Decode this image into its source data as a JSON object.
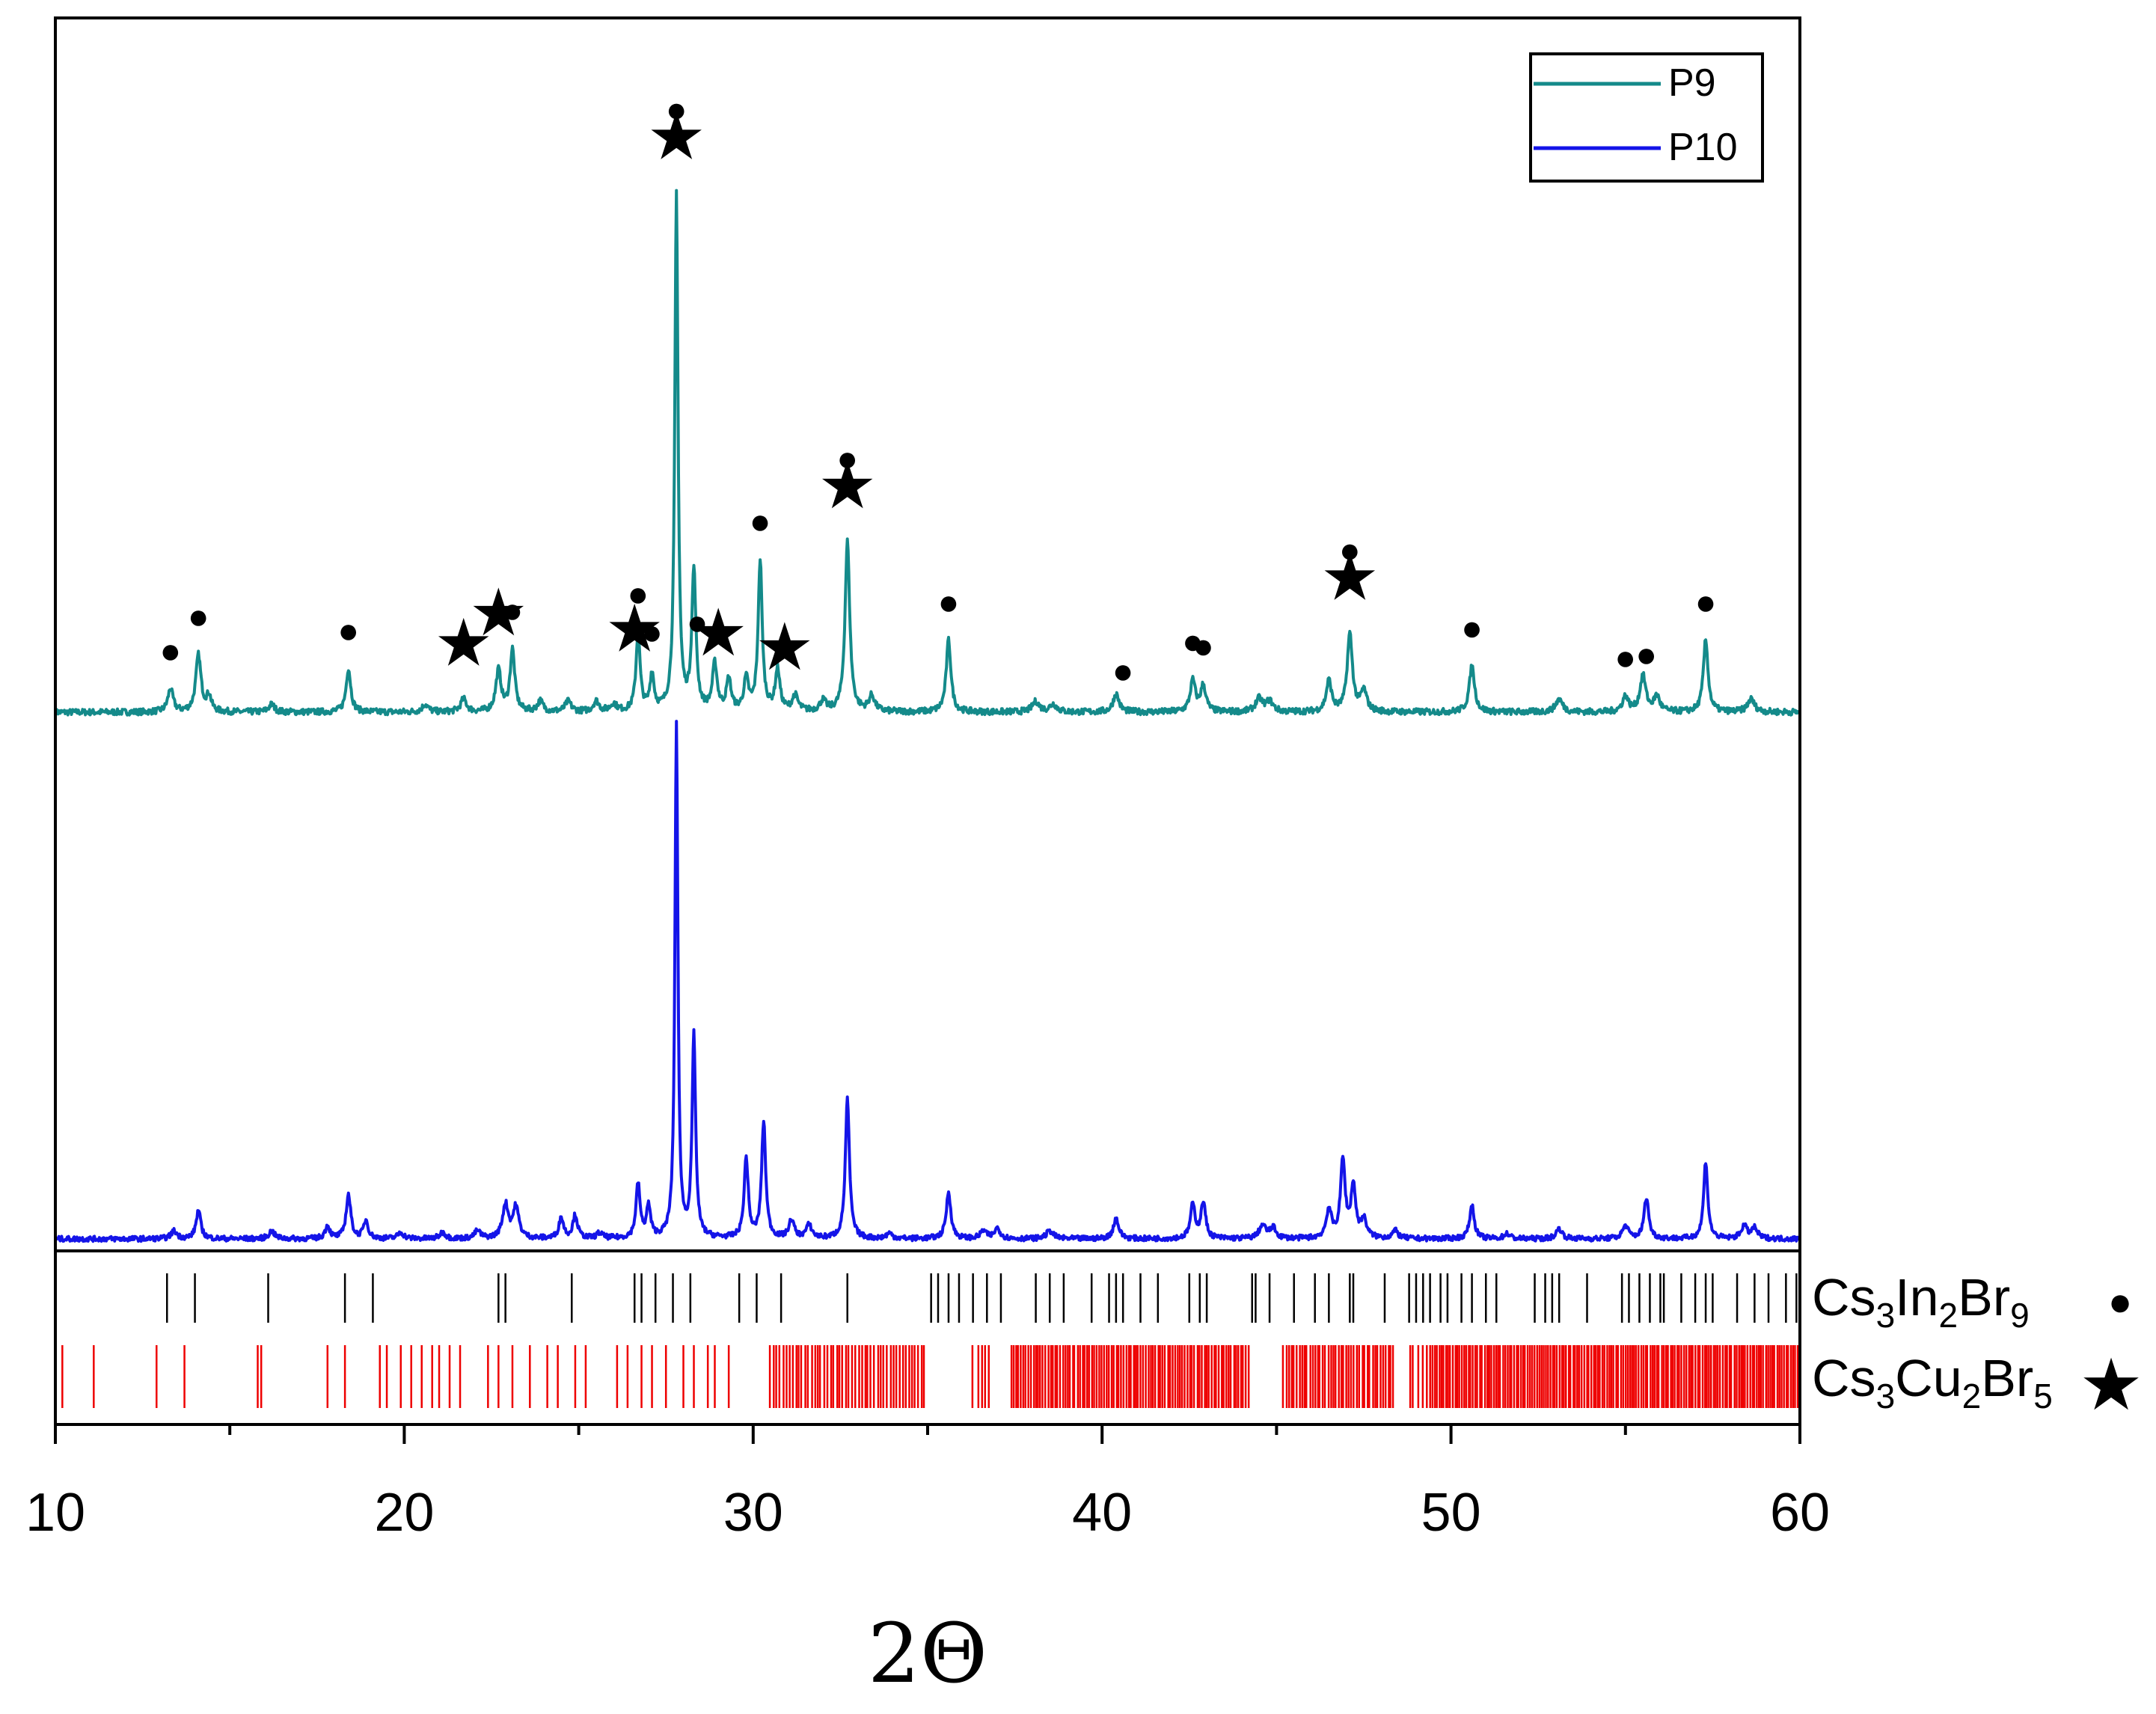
{
  "chart_data": {
    "type": "line",
    "title": "",
    "xlabel": "2Θ",
    "ylabel": "",
    "xlim": [
      10,
      60
    ],
    "x_ticks": [
      "10",
      "20",
      "30",
      "40",
      "50",
      "60"
    ],
    "legend": {
      "placement": "top-right",
      "entries": [
        {
          "name": "P9",
          "color": "#148a8a"
        },
        {
          "name": "P10",
          "color": "#1414e8"
        }
      ]
    },
    "series": [
      {
        "name": "P9",
        "color": "#148a8a",
        "baseline": 0.0,
        "noise": 0.006,
        "peaks": [
          [
            13.3,
            0.045,
            0.09
          ],
          [
            14.1,
            0.11,
            0.09
          ],
          [
            14.4,
            0.03,
            0.08
          ],
          [
            16.2,
            0.015,
            0.1
          ],
          [
            18.4,
            0.085,
            0.08
          ],
          [
            20.6,
            0.015,
            0.1
          ],
          [
            21.7,
            0.025,
            0.1
          ],
          [
            22.7,
            0.08,
            0.09
          ],
          [
            23.1,
            0.12,
            0.08
          ],
          [
            23.9,
            0.02,
            0.1
          ],
          [
            24.7,
            0.02,
            0.1
          ],
          [
            25.5,
            0.02,
            0.1
          ],
          [
            26.0,
            0.015,
            0.1
          ],
          [
            26.7,
            0.15,
            0.07
          ],
          [
            27.1,
            0.07,
            0.07
          ],
          [
            27.8,
            1.0,
            0.055
          ],
          [
            28.3,
            0.27,
            0.07
          ],
          [
            28.9,
            0.09,
            0.08
          ],
          [
            29.3,
            0.06,
            0.08
          ],
          [
            29.8,
            0.06,
            0.08
          ],
          [
            30.2,
            0.29,
            0.07
          ],
          [
            30.7,
            0.08,
            0.08
          ],
          [
            31.2,
            0.03,
            0.1
          ],
          [
            32.0,
            0.02,
            0.1
          ],
          [
            32.7,
            0.33,
            0.08
          ],
          [
            33.4,
            0.03,
            0.1
          ],
          [
            35.6,
            0.14,
            0.08
          ],
          [
            38.1,
            0.02,
            0.12
          ],
          [
            38.6,
            0.015,
            0.12
          ],
          [
            40.4,
            0.035,
            0.1
          ],
          [
            42.6,
            0.06,
            0.09
          ],
          [
            42.9,
            0.05,
            0.09
          ],
          [
            44.5,
            0.025,
            0.12
          ],
          [
            44.8,
            0.02,
            0.12
          ],
          [
            46.5,
            0.06,
            0.09
          ],
          [
            47.1,
            0.15,
            0.09
          ],
          [
            47.5,
            0.04,
            0.1
          ],
          [
            50.6,
            0.09,
            0.09
          ],
          [
            53.1,
            0.025,
            0.12
          ],
          [
            55.0,
            0.03,
            0.1
          ],
          [
            55.5,
            0.07,
            0.1
          ],
          [
            55.9,
            0.03,
            0.1
          ],
          [
            57.3,
            0.14,
            0.08
          ],
          [
            58.6,
            0.025,
            0.12
          ]
        ]
      },
      {
        "name": "P10",
        "color": "#1414e8",
        "baseline": 0.0,
        "noise": 0.005,
        "peaks": [
          [
            13.4,
            0.015,
            0.1
          ],
          [
            14.1,
            0.055,
            0.08
          ],
          [
            16.2,
            0.015,
            0.1
          ],
          [
            17.8,
            0.025,
            0.08
          ],
          [
            18.4,
            0.085,
            0.08
          ],
          [
            18.9,
            0.035,
            0.08
          ],
          [
            19.9,
            0.012,
            0.1
          ],
          [
            21.1,
            0.012,
            0.1
          ],
          [
            22.1,
            0.015,
            0.1
          ],
          [
            22.9,
            0.065,
            0.1
          ],
          [
            23.2,
            0.06,
            0.1
          ],
          [
            24.5,
            0.04,
            0.08
          ],
          [
            24.9,
            0.045,
            0.08
          ],
          [
            25.6,
            0.01,
            0.1
          ],
          [
            26.7,
            0.105,
            0.07
          ],
          [
            27.0,
            0.06,
            0.07
          ],
          [
            27.8,
            1.0,
            0.05
          ],
          [
            28.3,
            0.39,
            0.06
          ],
          [
            29.8,
            0.155,
            0.07
          ],
          [
            30.3,
            0.225,
            0.07
          ],
          [
            31.1,
            0.035,
            0.09
          ],
          [
            31.6,
            0.025,
            0.1
          ],
          [
            32.7,
            0.27,
            0.07
          ],
          [
            33.9,
            0.01,
            0.1
          ],
          [
            35.6,
            0.09,
            0.08
          ],
          [
            36.6,
            0.015,
            0.1
          ],
          [
            37.0,
            0.02,
            0.1
          ],
          [
            38.5,
            0.015,
            0.12
          ],
          [
            40.4,
            0.04,
            0.09
          ],
          [
            42.6,
            0.065,
            0.08
          ],
          [
            42.9,
            0.07,
            0.08
          ],
          [
            44.6,
            0.025,
            0.12
          ],
          [
            44.9,
            0.02,
            0.1
          ],
          [
            46.5,
            0.055,
            0.09
          ],
          [
            46.9,
            0.15,
            0.08
          ],
          [
            47.2,
            0.1,
            0.08
          ],
          [
            47.5,
            0.035,
            0.1
          ],
          [
            48.4,
            0.015,
            0.1
          ],
          [
            50.6,
            0.065,
            0.08
          ],
          [
            51.6,
            0.01,
            0.1
          ],
          [
            53.1,
            0.02,
            0.1
          ],
          [
            55.0,
            0.025,
            0.1
          ],
          [
            55.6,
            0.08,
            0.08
          ],
          [
            57.3,
            0.15,
            0.07
          ],
          [
            58.4,
            0.025,
            0.1
          ],
          [
            58.7,
            0.02,
            0.1
          ]
        ]
      }
    ],
    "reference_patterns": [
      {
        "name": "Cs3In2Br9",
        "label_parts": [
          [
            "Cs",
            ""
          ],
          [
            "3",
            "sub"
          ],
          [
            "In",
            ""
          ],
          [
            "2",
            "sub"
          ],
          [
            "Br",
            ""
          ],
          [
            "9",
            "sub"
          ]
        ],
        "symbol": "●",
        "color": "#000000",
        "positions": [
          13.2,
          14.0,
          16.1,
          18.3,
          19.1,
          22.7,
          22.9,
          24.8,
          26.6,
          26.8,
          27.2,
          27.7,
          28.2,
          29.6,
          30.1,
          30.8,
          32.7,
          35.1,
          35.3,
          35.6,
          35.9,
          36.3,
          36.7,
          37.1,
          38.1,
          38.5,
          38.9,
          39.7,
          40.2,
          40.4,
          40.6,
          41.1,
          41.6,
          42.5,
          42.8,
          43.0,
          44.3,
          44.4,
          44.8,
          45.5,
          46.1,
          46.5,
          47.1,
          47.2,
          48.1,
          48.8,
          49.0,
          49.2,
          49.4,
          49.7,
          49.9,
          50.3,
          50.6,
          51.0,
          51.3,
          52.4,
          52.7,
          52.9,
          53.1,
          53.9,
          54.9,
          55.1,
          55.4,
          55.7,
          56.0,
          56.1,
          56.6,
          57.0,
          57.3,
          57.5,
          58.2,
          58.7,
          59.1,
          59.6,
          59.9
        ],
        "extra_dense_ranges": []
      },
      {
        "name": "Cs3Cu2Br5",
        "label_parts": [
          [
            "Cs",
            ""
          ],
          [
            "3",
            "sub"
          ],
          [
            "Cu",
            ""
          ],
          [
            "2",
            "sub"
          ],
          [
            "Br",
            ""
          ],
          [
            "5",
            "sub"
          ]
        ],
        "symbol": "★",
        "color": "#ee0000",
        "positions": [
          10.2,
          11.1,
          12.9,
          13.7,
          15.8,
          15.9,
          17.8,
          18.3,
          19.3,
          19.5,
          19.9,
          20.2,
          20.5,
          20.8,
          21.0,
          21.3,
          21.6,
          22.4,
          22.7,
          23.1,
          23.6,
          24.1,
          24.4,
          24.9,
          25.2,
          26.1,
          26.4,
          26.8,
          27.1,
          27.5,
          28.0,
          28.3,
          28.7,
          28.9,
          29.3
        ],
        "extra_dense_ranges": [
          [
            30.5,
            35.0,
            0.09
          ],
          [
            36.3,
            36.8,
            0.12
          ],
          [
            37.4,
            44.2,
            0.07
          ],
          [
            45.2,
            48.4,
            0.075
          ],
          [
            48.8,
            49.3,
            0.12
          ],
          [
            49.4,
            60.0,
            0.065
          ]
        ]
      }
    ],
    "annotations": {
      "P9_markers": [
        {
          "x": 13.3,
          "symbol": "●"
        },
        {
          "x": 14.1,
          "symbol": "●"
        },
        {
          "x": 18.4,
          "symbol": "●"
        },
        {
          "x": 21.7,
          "symbol": "★"
        },
        {
          "x": 22.7,
          "symbol": "★"
        },
        {
          "x": 23.1,
          "symbol": "●"
        },
        {
          "x": 26.6,
          "symbol": "★"
        },
        {
          "x": 26.7,
          "symbol": "●"
        },
        {
          "x": 27.1,
          "symbol": "●"
        },
        {
          "x": 27.8,
          "symbol": "★"
        },
        {
          "x": 27.8,
          "symbol": "●"
        },
        {
          "x": 28.4,
          "symbol": "●"
        },
        {
          "x": 29.0,
          "symbol": "★"
        },
        {
          "x": 30.2,
          "symbol": "●"
        },
        {
          "x": 30.9,
          "symbol": "★"
        },
        {
          "x": 32.7,
          "symbol": "★"
        },
        {
          "x": 32.7,
          "symbol": "●"
        },
        {
          "x": 35.6,
          "symbol": "●"
        },
        {
          "x": 40.6,
          "symbol": "●"
        },
        {
          "x": 42.6,
          "symbol": "●"
        },
        {
          "x": 42.9,
          "symbol": "●"
        },
        {
          "x": 47.1,
          "symbol": "★"
        },
        {
          "x": 47.1,
          "symbol": "●"
        },
        {
          "x": 50.6,
          "symbol": "●"
        },
        {
          "x": 55.0,
          "symbol": "●"
        },
        {
          "x": 55.6,
          "symbol": "●"
        },
        {
          "x": 57.3,
          "symbol": "●"
        }
      ]
    }
  }
}
